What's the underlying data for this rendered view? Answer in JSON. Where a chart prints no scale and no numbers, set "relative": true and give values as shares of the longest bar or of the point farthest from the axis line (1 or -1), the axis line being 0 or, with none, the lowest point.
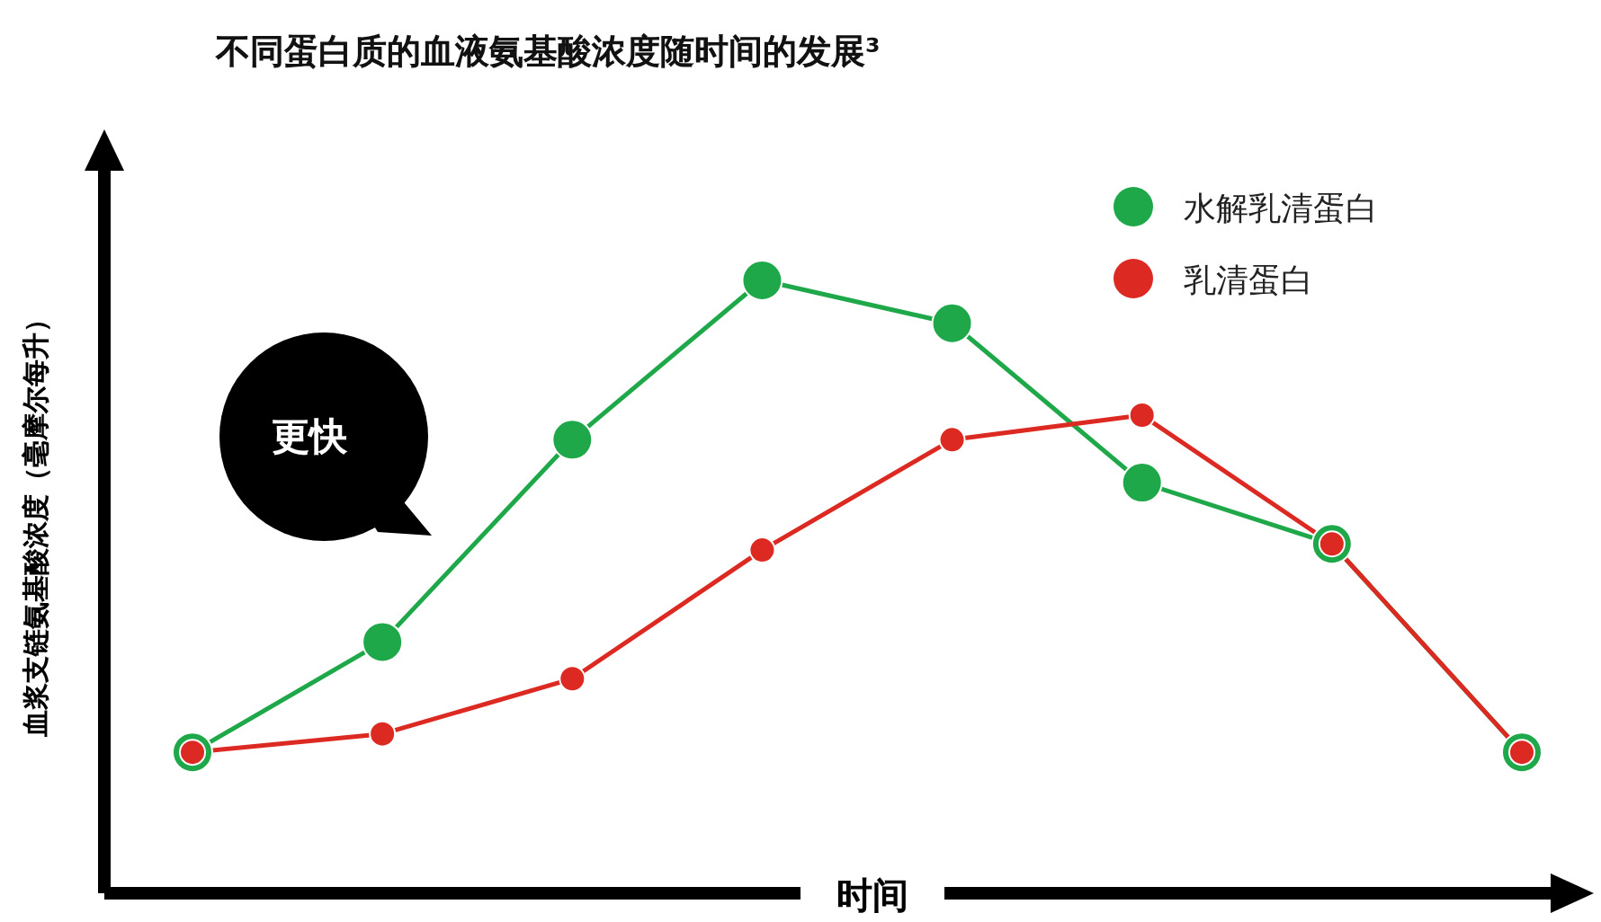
{
  "chart_data": {
    "type": "line",
    "relative": true,
    "title": "不同蛋白质的血液氨基酸浓度随时间的发展³",
    "xlabel": "时间",
    "ylabel": "血浆支链氨基酸浓度（毫摩尔每升）",
    "categories": [
      null,
      null,
      null,
      null,
      null,
      null,
      null,
      null
    ],
    "series": [
      {
        "name": "水解乳清蛋白",
        "color": "#1fa84a",
        "values": [
          0.23,
          0.41,
          0.74,
          1,
          0.93,
          0.67,
          0.57,
          0.23
        ]
      },
      {
        "name": "乳清蛋白",
        "color": "#dc2a22",
        "values": [
          0.23,
          0.26,
          0.35,
          0.56,
          0.74,
          0.78,
          0.57,
          0.23
        ]
      }
    ],
    "marker": "circle",
    "line_style": "solid",
    "legend": "top right",
    "annotations": [
      "更快"
    ]
  }
}
